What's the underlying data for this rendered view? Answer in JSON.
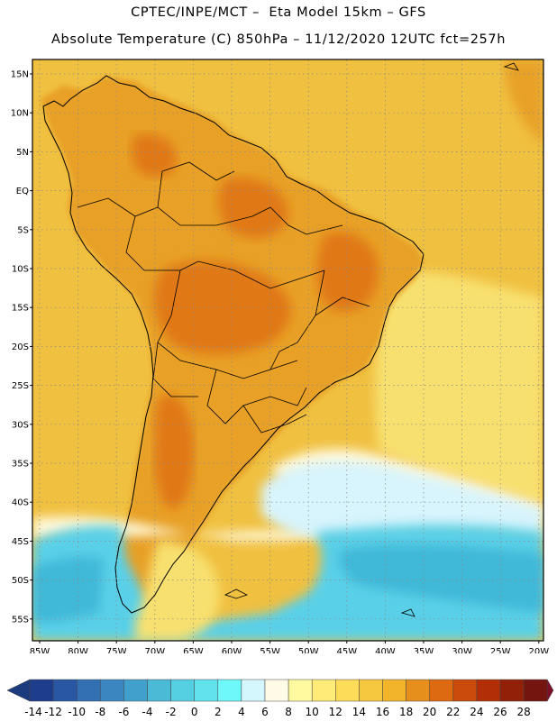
{
  "header": {
    "line1": "CPTEC/INPE/MCT –  Eta Model 15km – GFS",
    "line2": "Absolute Temperature (C) 850hPa – 11/12/2020 12UTC fct=257h"
  },
  "map": {
    "lat_labels": [
      "15N",
      "10N",
      "5N",
      "EQ",
      "5S",
      "10S",
      "15S",
      "20S",
      "25S",
      "30S",
      "35S",
      "40S",
      "45S",
      "50S",
      "55S"
    ],
    "lon_labels": [
      "85W",
      "80W",
      "75W",
      "70W",
      "65W",
      "60W",
      "55W",
      "50W",
      "45W",
      "40W",
      "35W",
      "30W",
      "25W",
      "20W"
    ],
    "colors": {
      "ocean_warm": "#f0c040",
      "land_warm": "#e8a028",
      "hot": "#e07818",
      "mild": "#f8e070",
      "pale": "#fff8d8",
      "cool": "#d8f4fc",
      "cold": "#5ad0e8",
      "colder": "#40b8d8"
    }
  },
  "colorbar": {
    "ticks": [
      "-14",
      "-12",
      "-10",
      "-8",
      "-6",
      "-4",
      "-2",
      "0",
      "2",
      "4",
      "6",
      "8",
      "10",
      "12",
      "14",
      "16",
      "18",
      "20",
      "22",
      "24",
      "26",
      "28"
    ],
    "colors": [
      "#1e3c8c",
      "#2a57a3",
      "#3270b3",
      "#3b86c0",
      "#41a0cc",
      "#4bbad6",
      "#55d0e2",
      "#62e2ec",
      "#6ff8fa",
      "#d4f6fd",
      "#fffbe6",
      "#fff9a0",
      "#feeb78",
      "#fcdc58",
      "#f6c840",
      "#f1b42a",
      "#e78f1c",
      "#dd6a10",
      "#c94a0a",
      "#b12e06",
      "#922008",
      "#741510"
    ],
    "left_arrow": "#1c3a7e",
    "right_arrow": "#7b0f28"
  }
}
